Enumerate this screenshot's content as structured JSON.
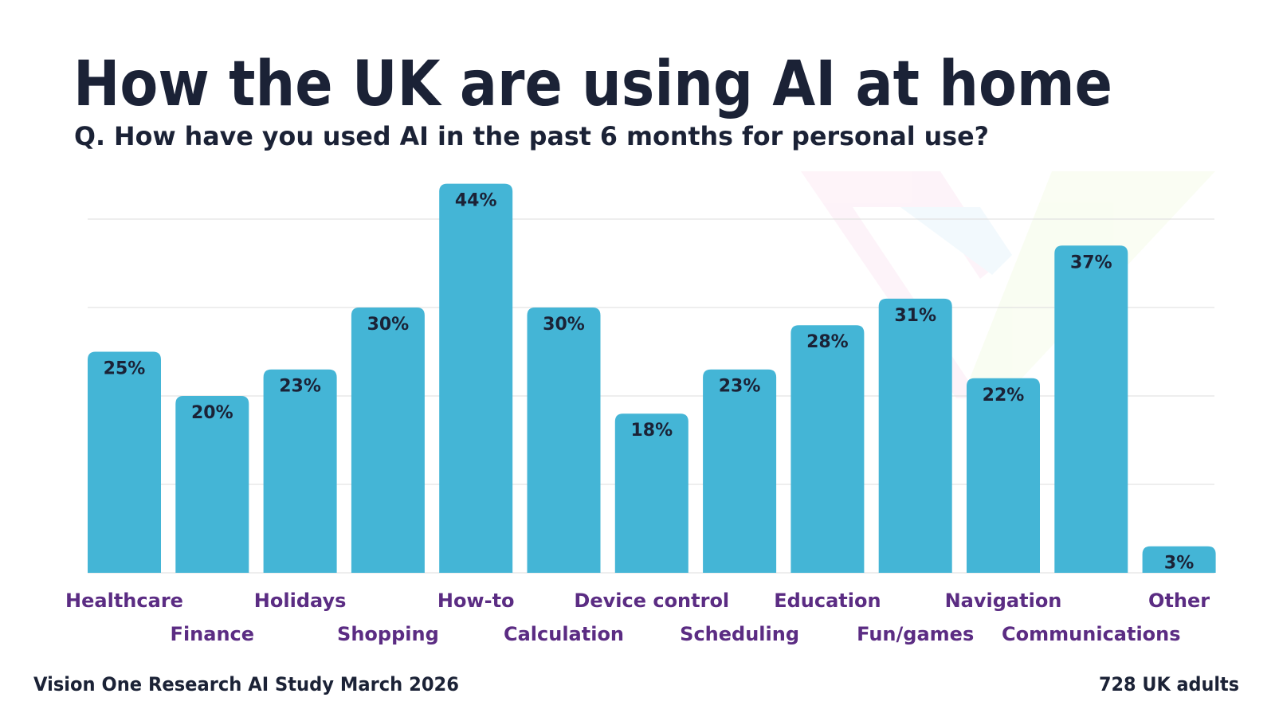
{
  "chart_data": {
    "type": "bar",
    "title": "How the UK are using AI at home",
    "subtitle": "Q. How have you used AI in the past 6 months for personal use?",
    "categories": [
      "Healthcare",
      "Finance",
      "Holidays",
      "Shopping",
      "How-to",
      "Calculation",
      "Device control",
      "Scheduling",
      "Education",
      "Fun/games",
      "Navigation",
      "Communications",
      "Other"
    ],
    "values": [
      25,
      20,
      23,
      30,
      44,
      30,
      18,
      23,
      28,
      31,
      22,
      37,
      3
    ],
    "value_labels": [
      "25%",
      "20%",
      "23%",
      "30%",
      "44%",
      "30%",
      "18%",
      "23%",
      "28%",
      "31%",
      "22%",
      "37%",
      "3%"
    ],
    "unit": "%",
    "ylim": [
      0,
      40
    ],
    "grid": true,
    "gridlines": [
      10,
      20,
      30,
      40
    ],
    "colors": {
      "bar": "#44b5d6",
      "title": "#1b2236",
      "category_label": "#5b2c83",
      "grid": "#dcdcdc"
    },
    "source": "Vision One Research AI Study March 2026",
    "sample": "728 UK adults"
  }
}
